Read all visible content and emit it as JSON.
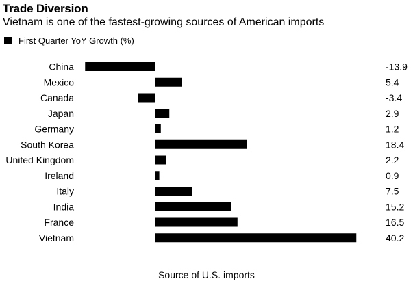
{
  "title": "Trade Diversion",
  "subtitle": "Vietnam is one of the fastest-growing sources of American imports",
  "legend": {
    "label": "First Quarter YoY Growth (%)",
    "color": "#000000"
  },
  "footer": "Source of U.S. imports",
  "chart_data": {
    "type": "bar",
    "orientation": "horizontal",
    "title": "Trade Diversion",
    "subtitle": "Vietnam is one of the fastest-growing sources of American imports",
    "categories": [
      "China",
      "Mexico",
      "Canada",
      "Japan",
      "Germany",
      "South Korea",
      "United Kingdom",
      "Ireland",
      "Italy",
      "India",
      "France",
      "Vietnam"
    ],
    "value_labels": [
      "-13.9",
      "5.4",
      "-3.4",
      "2.9",
      "1.2",
      "18.4",
      "2.2",
      "0.9",
      "7.5",
      "15.2",
      "16.5",
      "40.2"
    ],
    "series": [
      {
        "name": "First Quarter YoY Growth (%)",
        "values": [
          -13.9,
          5.4,
          -3.4,
          2.9,
          1.2,
          18.4,
          2.2,
          0.9,
          7.5,
          15.2,
          16.5,
          40.2
        ],
        "color": "#000000"
      }
    ],
    "xlabel": "Source of U.S. imports",
    "ylabel": "",
    "xlim": [
      -13.9,
      40.2
    ],
    "grid": false,
    "legend_position": "top-left"
  }
}
